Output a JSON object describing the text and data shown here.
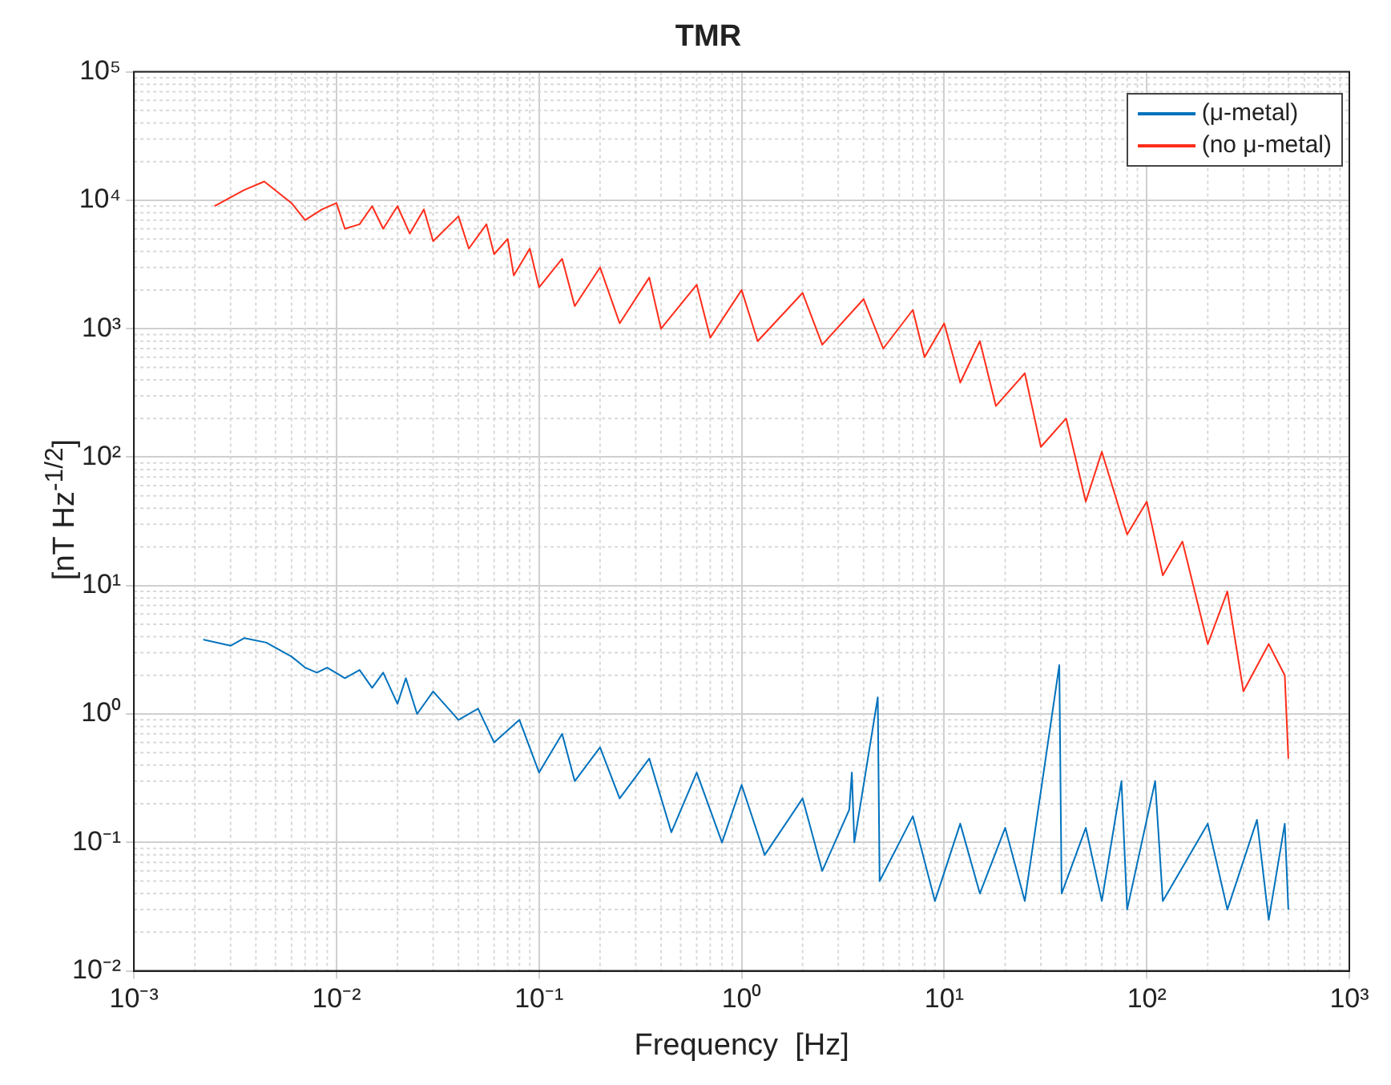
{
  "chart_data": {
    "type": "line",
    "title": "TMR",
    "xlabel": "Frequency  [Hz]",
    "ylabel": "[nT Hz$^{-1/2}$]",
    "log": "xy",
    "grid": true,
    "legend": "top right",
    "xlim": [
      0.001,
      1000
    ],
    "ylim": [
      0.01,
      100000
    ],
    "xticks": [
      {
        "value": 0.001,
        "label": "10⁻³"
      },
      {
        "value": 0.01,
        "label": "10⁻²"
      },
      {
        "value": 0.1,
        "label": "10⁻¹"
      },
      {
        "value": 1,
        "label": "10⁰"
      },
      {
        "value": 10,
        "label": "10¹"
      },
      {
        "value": 100,
        "label": "10²"
      },
      {
        "value": 1000,
        "label": "10³"
      }
    ],
    "yticks": [
      {
        "value": 0.01,
        "label": "10⁻²"
      },
      {
        "value": 0.1,
        "label": "10⁻¹"
      },
      {
        "value": 1,
        "label": "10⁰"
      },
      {
        "value": 10,
        "label": "10¹"
      },
      {
        "value": 100,
        "label": "10²"
      },
      {
        "value": 1000,
        "label": "10³"
      },
      {
        "value": 10000,
        "label": "10⁴"
      },
      {
        "value": 100000,
        "label": "10⁵"
      }
    ],
    "series": [
      {
        "name": "(μ-metal)",
        "color": "#0072bd",
        "x": [
          0.0022,
          0.003,
          0.0035,
          0.0045,
          0.006,
          0.007,
          0.008,
          0.009,
          0.011,
          0.013,
          0.015,
          0.017,
          0.02,
          0.022,
          0.025,
          0.03,
          0.04,
          0.05,
          0.06,
          0.08,
          0.1,
          0.13,
          0.15,
          0.2,
          0.25,
          0.35,
          0.45,
          0.6,
          0.8,
          1,
          1.3,
          2,
          2.5,
          3.4,
          3.5,
          3.6,
          4.7,
          4.8,
          7,
          9,
          12,
          15,
          20,
          25,
          37,
          38,
          50,
          60,
          75,
          80,
          110,
          120,
          200,
          250,
          350,
          400,
          480,
          500
        ],
        "values": [
          3.8,
          3.4,
          3.9,
          3.6,
          2.8,
          2.3,
          2.1,
          2.3,
          1.9,
          2.2,
          1.6,
          2.1,
          1.2,
          1.9,
          1.0,
          1.5,
          0.9,
          1.1,
          0.6,
          0.9,
          0.35,
          0.7,
          0.3,
          0.55,
          0.22,
          0.45,
          0.12,
          0.35,
          0.1,
          0.28,
          0.08,
          0.22,
          0.06,
          0.18,
          0.35,
          0.1,
          1.35,
          0.05,
          0.16,
          0.035,
          0.14,
          0.04,
          0.13,
          0.035,
          2.4,
          0.04,
          0.13,
          0.035,
          0.3,
          0.03,
          0.3,
          0.035,
          0.14,
          0.03,
          0.15,
          0.025,
          0.14,
          0.03
        ]
      },
      {
        "name": "(no μ-metal)",
        "color": "#ff2d1a",
        "x": [
          0.0025,
          0.0035,
          0.0044,
          0.006,
          0.007,
          0.0085,
          0.01,
          0.011,
          0.013,
          0.015,
          0.017,
          0.02,
          0.023,
          0.027,
          0.03,
          0.04,
          0.045,
          0.055,
          0.06,
          0.07,
          0.075,
          0.09,
          0.1,
          0.13,
          0.15,
          0.2,
          0.25,
          0.35,
          0.4,
          0.6,
          0.7,
          1,
          1.2,
          2,
          2.5,
          4,
          5,
          7,
          8,
          10,
          12,
          15,
          18,
          25,
          30,
          40,
          50,
          60,
          80,
          100,
          120,
          150,
          200,
          250,
          300,
          400,
          480,
          500
        ],
        "values": [
          9000,
          12000,
          14000,
          9500,
          7000,
          8500,
          9500,
          6000,
          6500,
          9000,
          6000,
          9000,
          5500,
          8500,
          4800,
          7500,
          4200,
          6500,
          3800,
          5000,
          2600,
          4200,
          2100,
          3500,
          1500,
          3000,
          1100,
          2500,
          1000,
          2200,
          850,
          2000,
          800,
          1900,
          750,
          1700,
          700,
          1400,
          600,
          1100,
          380,
          800,
          250,
          450,
          120,
          200,
          45,
          110,
          25,
          45,
          12,
          22,
          3.5,
          9,
          1.5,
          3.5,
          2,
          0.45
        ]
      }
    ]
  }
}
